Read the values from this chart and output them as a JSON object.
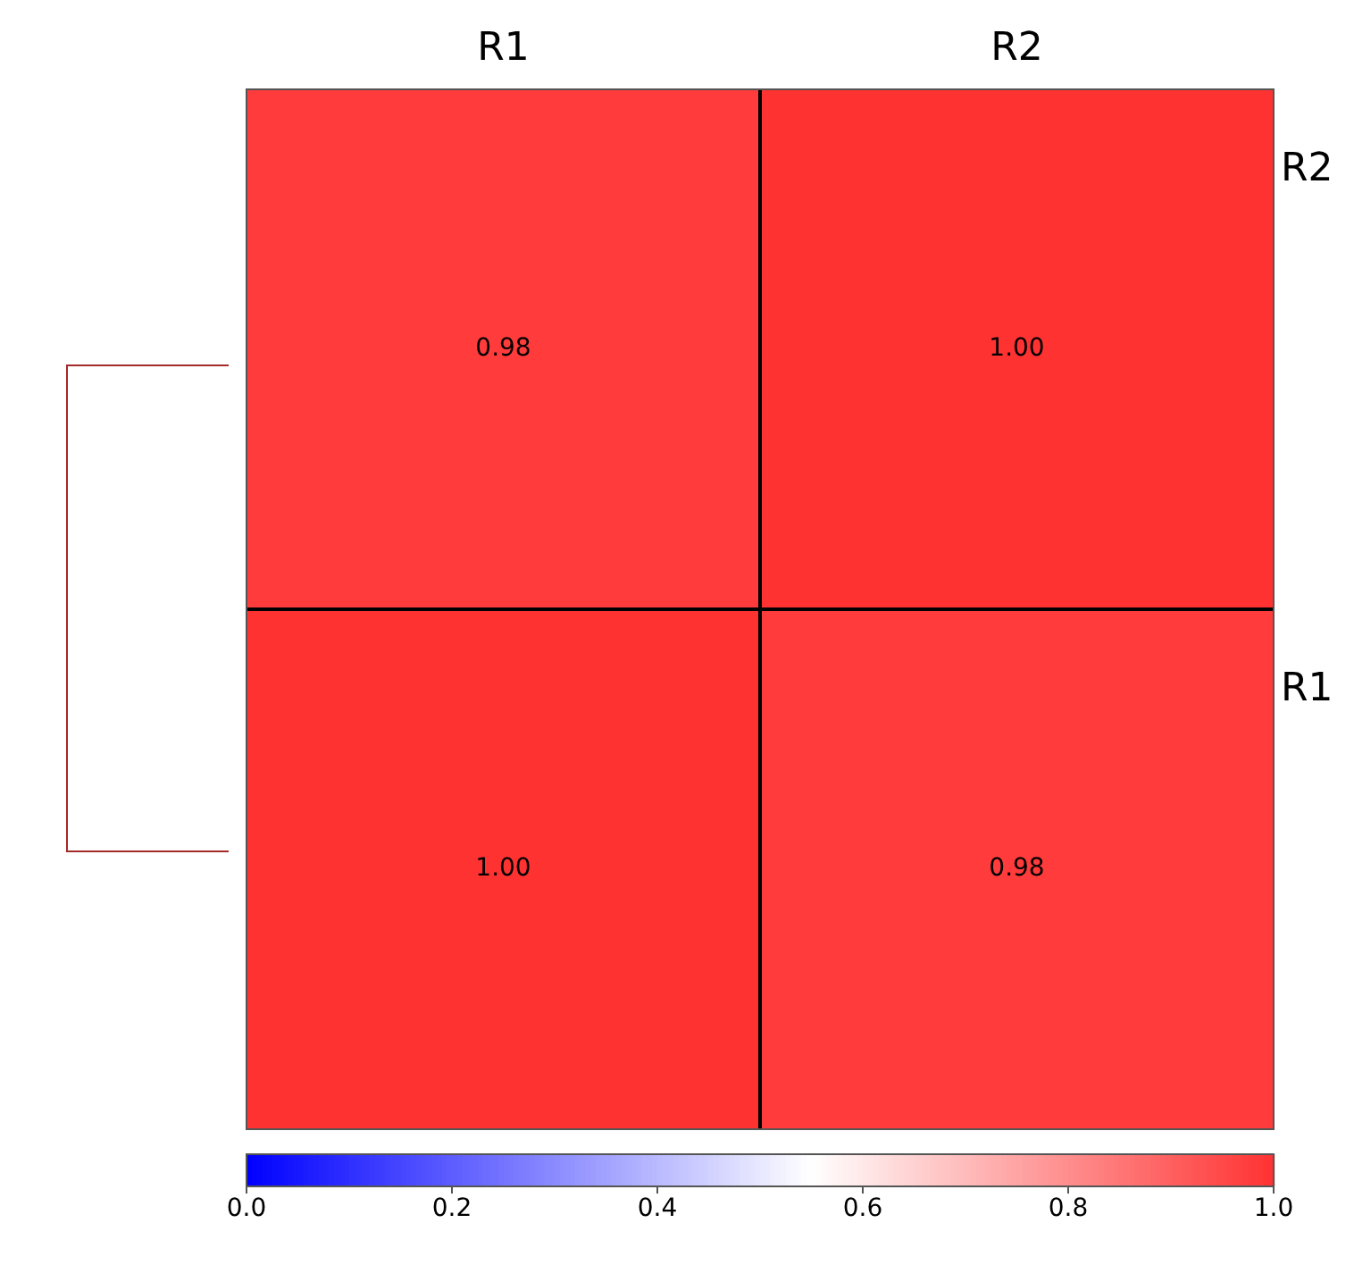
{
  "chart_data": {
    "type": "heatmap",
    "categories": [
      "R1",
      "R2"
    ],
    "y_categories": [
      "R2",
      "R1"
    ],
    "cells": [
      [
        0.98,
        1.0
      ],
      [
        1.0,
        0.98
      ]
    ],
    "cell_labels": [
      [
        "0.98",
        "1.00"
      ],
      [
        "1.00",
        "0.98"
      ]
    ],
    "clim": [
      0,
      1
    ],
    "cticks": [
      {
        "value": 0,
        "label": "0.0"
      },
      0.2,
      0.4,
      0.6,
      0.8,
      {
        "value": 1,
        "label": "1.0"
      }
    ]
  }
}
